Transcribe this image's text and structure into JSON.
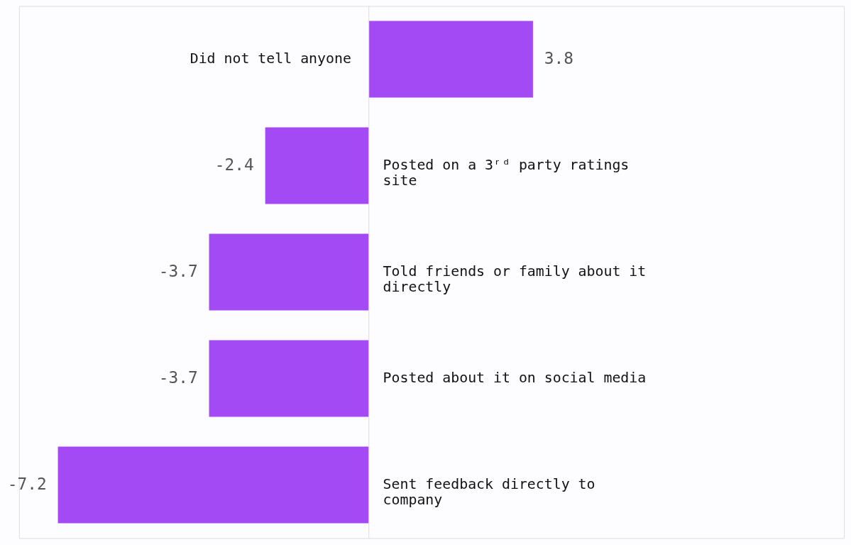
{
  "chart_data": {
    "type": "bar",
    "orientation": "horizontal",
    "categories": [
      "Did not tell anyone",
      "Posted on a 3ʳᵈ party ratings site",
      "Told friends or family about it directly",
      "Posted about it on social media",
      "Sent feedback directly to company"
    ],
    "values": [
      3.8,
      -2.4,
      -3.7,
      -3.7,
      -7.2
    ],
    "color": "#a44af4",
    "data_labels": true
  }
}
